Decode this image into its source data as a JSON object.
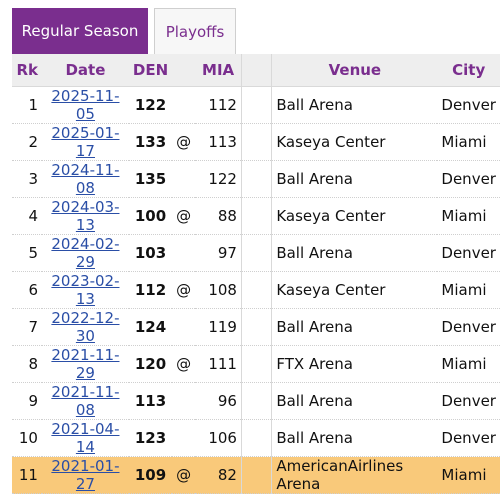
{
  "tabs": {
    "regular_season": "Regular Season",
    "playoffs": "Playoffs"
  },
  "table": {
    "headers": [
      "Rk",
      "Date",
      "DEN",
      "",
      "MIA",
      "",
      "Venue",
      "City"
    ],
    "rows": [
      {
        "rk": "1",
        "date": "2025-11-05",
        "den": "122",
        "at": "",
        "mia": "112",
        "venue": "Ball Arena",
        "city": "Denver"
      },
      {
        "rk": "2",
        "date": "2025-01-17",
        "den": "133",
        "at": "@",
        "mia": "113",
        "venue": "Kaseya Center",
        "city": "Miami"
      },
      {
        "rk": "3",
        "date": "2024-11-08",
        "den": "135",
        "at": "",
        "mia": "122",
        "venue": "Ball Arena",
        "city": "Denver"
      },
      {
        "rk": "4",
        "date": "2024-03-13",
        "den": "100",
        "at": "@",
        "mia": "88",
        "venue": "Kaseya Center",
        "city": "Miami"
      },
      {
        "rk": "5",
        "date": "2024-02-29",
        "den": "103",
        "at": "",
        "mia": "97",
        "venue": "Ball Arena",
        "city": "Denver"
      },
      {
        "rk": "6",
        "date": "2023-02-13",
        "den": "112",
        "at": "@",
        "mia": "108",
        "venue": "Kaseya Center",
        "city": "Miami"
      },
      {
        "rk": "7",
        "date": "2022-12-30",
        "den": "124",
        "at": "",
        "mia": "119",
        "venue": "Ball Arena",
        "city": "Denver"
      },
      {
        "rk": "8",
        "date": "2021-11-29",
        "den": "120",
        "at": "@",
        "mia": "111",
        "venue": "FTX Arena",
        "city": "Miami"
      },
      {
        "rk": "9",
        "date": "2021-11-08",
        "den": "113",
        "at": "",
        "mia": "96",
        "venue": "Ball Arena",
        "city": "Denver"
      },
      {
        "rk": "10",
        "date": "2021-04-14",
        "den": "123",
        "at": "",
        "mia": "106",
        "venue": "Ball Arena",
        "city": "Denver"
      },
      {
        "rk": "11",
        "date": "2021-01-27",
        "den": "109",
        "at": "@",
        "mia": "82",
        "venue": "AmericanAirlines Arena",
        "city": "Miami"
      }
    ]
  },
  "colors": {
    "accent": "#7a2e8e",
    "link": "#2a4ea6",
    "highlight_row": "#f9c97a",
    "header_bg": "#eeeeee"
  }
}
